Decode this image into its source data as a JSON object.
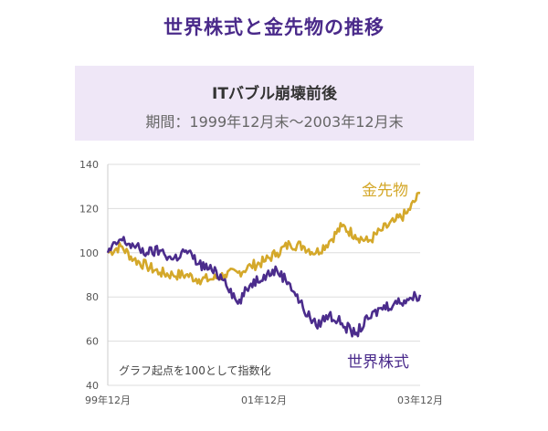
{
  "header": {
    "title": "世界株式と金先物の推移",
    "subtitle_main": "ITバブル崩壊前後",
    "subtitle_period": "期間：1999年12月末〜2003年12月末"
  },
  "chart_data": {
    "type": "line",
    "title": "",
    "xlabel": "",
    "ylabel": "",
    "ylim": [
      40,
      140
    ],
    "yticks": [
      40,
      60,
      80,
      100,
      120,
      140
    ],
    "xlim": [
      "1999-12",
      "2003-12"
    ],
    "xticks": [
      "99年12月",
      "01年12月",
      "03年12月"
    ],
    "grid": true,
    "annotation": "グラフ起点を100として指数化",
    "series": [
      {
        "name": "金先物",
        "color": "#d4a82a",
        "x": [
          "1999-12",
          "2000-02",
          "2000-04",
          "2000-06",
          "2000-08",
          "2000-10",
          "2000-12",
          "2001-02",
          "2001-04",
          "2001-06",
          "2001-08",
          "2001-10",
          "2001-12",
          "2002-02",
          "2002-04",
          "2002-06",
          "2002-08",
          "2002-10",
          "2002-12",
          "2003-02",
          "2003-04",
          "2003-06",
          "2003-08",
          "2003-10",
          "2003-12"
        ],
        "values": [
          100,
          103,
          97,
          94,
          91,
          90,
          90,
          88,
          88,
          90,
          91,
          94,
          96,
          100,
          104,
          103,
          100,
          105,
          112,
          108,
          105,
          110,
          114,
          118,
          127
        ]
      },
      {
        "name": "世界株式",
        "color": "#4b2c8c",
        "x": [
          "1999-12",
          "2000-02",
          "2000-04",
          "2000-06",
          "2000-08",
          "2000-10",
          "2000-12",
          "2001-02",
          "2001-04",
          "2001-06",
          "2001-08",
          "2001-10",
          "2001-12",
          "2002-02",
          "2002-04",
          "2002-06",
          "2002-08",
          "2002-10",
          "2002-12",
          "2003-02",
          "2003-04",
          "2003-06",
          "2003-08",
          "2003-10",
          "2003-12"
        ],
        "values": [
          100,
          106,
          103,
          100,
          101,
          97,
          101,
          95,
          92,
          88,
          77,
          86,
          90,
          92,
          86,
          75,
          67,
          72,
          68,
          63,
          70,
          75,
          77,
          79,
          81
        ]
      }
    ]
  }
}
